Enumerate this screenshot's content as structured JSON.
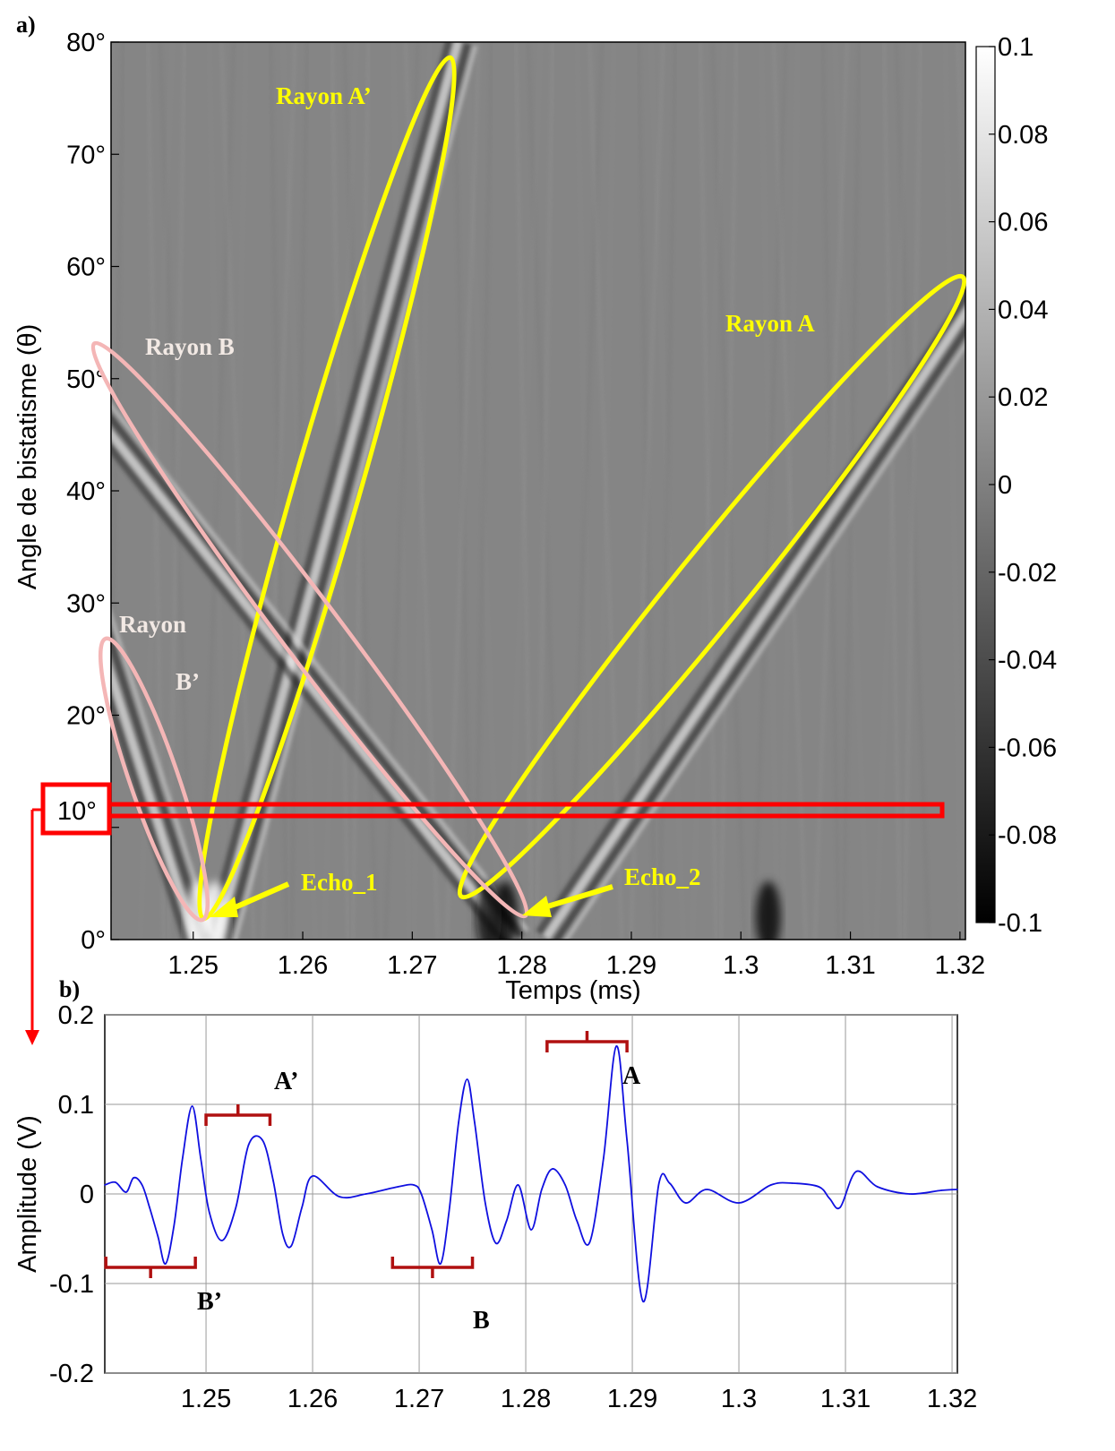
{
  "panel_a_label": "a)",
  "panel_b_label": "b)",
  "highlight_label": "10°",
  "colors": {
    "ellipse_yellow": "#ffff00",
    "ellipse_pink": "#f4b6b6",
    "highlight_red": "#ff0000",
    "bracket_darkred": "#b01010",
    "signal_blue": "#1010e0"
  },
  "chart_data": [
    {
      "type": "heatmap",
      "xlabel": "Temps (ms)",
      "ylabel": "Angle de bistatisme (θ)",
      "xlim": [
        1.2425,
        1.3205
      ],
      "ylim": [
        0,
        80
      ],
      "x_ticks": [
        "1.25",
        "1.26",
        "1.27",
        "1.28",
        "1.29",
        "1.3",
        "1.31",
        "1.32"
      ],
      "y_ticks": [
        "0°",
        "10°",
        "20°",
        "30°",
        "40°",
        "50°",
        "60°",
        "70°",
        "80°"
      ],
      "colormap": "gray",
      "colorbar": {
        "min": -0.1,
        "max": 0.1,
        "ticks": [
          "0.1",
          "0.08",
          "0.06",
          "0.04",
          "0.02",
          "0",
          "-0.02",
          "-0.04",
          "-0.06",
          "-0.08",
          "-0.1"
        ]
      },
      "annotations": {
        "rayon_a_prime": "Rayon A’",
        "rayon_a": "Rayon A",
        "rayon_b": "Rayon B",
        "rayon_b_prime_1": "Rayon",
        "rayon_b_prime_2": "B’",
        "echo_1": "Echo_1",
        "echo_2": "Echo_2"
      },
      "rays": [
        {
          "name": "Rayon A",
          "t0": 1.2825,
          "t80": 1.3375,
          "type": "rising"
        },
        {
          "name": "Rayon A’",
          "t0": 1.2525,
          "t80": 1.2745,
          "type": "rising"
        },
        {
          "name": "Rayon B",
          "t0": 1.2795,
          "t80": 1.2145,
          "type": "falling"
        },
        {
          "name": "Rayon B’",
          "t0": 1.2505,
          "t80": 1.2245,
          "type": "falling"
        }
      ]
    },
    {
      "type": "line",
      "xlabel": "",
      "ylabel": "Amplitude (V)",
      "xlim": [
        1.2405,
        1.3205
      ],
      "ylim": [
        -0.2,
        0.2
      ],
      "grid": true,
      "x_ticks": [
        "1.25",
        "1.26",
        "1.27",
        "1.28",
        "1.29",
        "1.3",
        "1.31",
        "1.32"
      ],
      "y_ticks": [
        "0.2",
        "0.1",
        "0",
        "-0.1",
        "-0.2"
      ],
      "series": [
        {
          "x": [
            1.2405,
            1.2415,
            1.2425,
            1.2432,
            1.244,
            1.2447,
            1.2455,
            1.2462,
            1.247,
            1.2478,
            1.2487,
            1.2495,
            1.2503,
            1.2515,
            1.2528,
            1.254,
            1.2553,
            1.2563,
            1.2572,
            1.258,
            1.259,
            1.26,
            1.2625,
            1.265,
            1.268,
            1.2695,
            1.2702,
            1.2712,
            1.272,
            1.2728,
            1.2737,
            1.2745,
            1.2752,
            1.2762,
            1.2772,
            1.2782,
            1.2793,
            1.2805,
            1.2815,
            1.2825,
            1.2837,
            1.2848,
            1.286,
            1.2873,
            1.2885,
            1.2895,
            1.291,
            1.2925,
            1.2935,
            1.295,
            1.297,
            1.3,
            1.303,
            1.305,
            1.3075,
            1.3085,
            1.3095,
            1.311,
            1.313,
            1.316,
            1.319,
            1.3205
          ],
          "values": [
            0.01,
            0.013,
            0.002,
            0.018,
            0.01,
            -0.015,
            -0.048,
            -0.078,
            -0.035,
            0.04,
            0.098,
            0.04,
            -0.02,
            -0.052,
            -0.015,
            0.055,
            0.06,
            0.015,
            -0.045,
            -0.058,
            -0.015,
            0.02,
            -0.003,
            0.0,
            0.008,
            0.01,
            0.0,
            -0.04,
            -0.078,
            -0.02,
            0.08,
            0.128,
            0.08,
            -0.01,
            -0.055,
            -0.03,
            0.01,
            -0.04,
            0.005,
            0.028,
            0.01,
            -0.03,
            -0.054,
            0.04,
            0.165,
            0.06,
            -0.12,
            0.012,
            0.012,
            -0.01,
            0.005,
            -0.01,
            0.01,
            0.012,
            0.008,
            -0.005,
            -0.015,
            0.025,
            0.008,
            0.0,
            0.004,
            0.005
          ]
        }
      ],
      "annotations": {
        "a_prime": "A’",
        "a": "A",
        "b_prime": "B’",
        "b": "B"
      },
      "brackets": [
        {
          "label": "B’",
          "x_start": 1.2406,
          "x_end": 1.249,
          "y": -0.082,
          "direction": "down"
        },
        {
          "label": "A’",
          "x_start": 1.25,
          "x_end": 1.256,
          "y": 0.088,
          "direction": "up"
        },
        {
          "label": "B",
          "x_start": 1.2675,
          "x_end": 1.275,
          "y": -0.082,
          "direction": "down"
        },
        {
          "label": "A",
          "x_start": 1.282,
          "x_end": 1.2895,
          "y": 0.17,
          "direction": "up"
        }
      ]
    }
  ]
}
